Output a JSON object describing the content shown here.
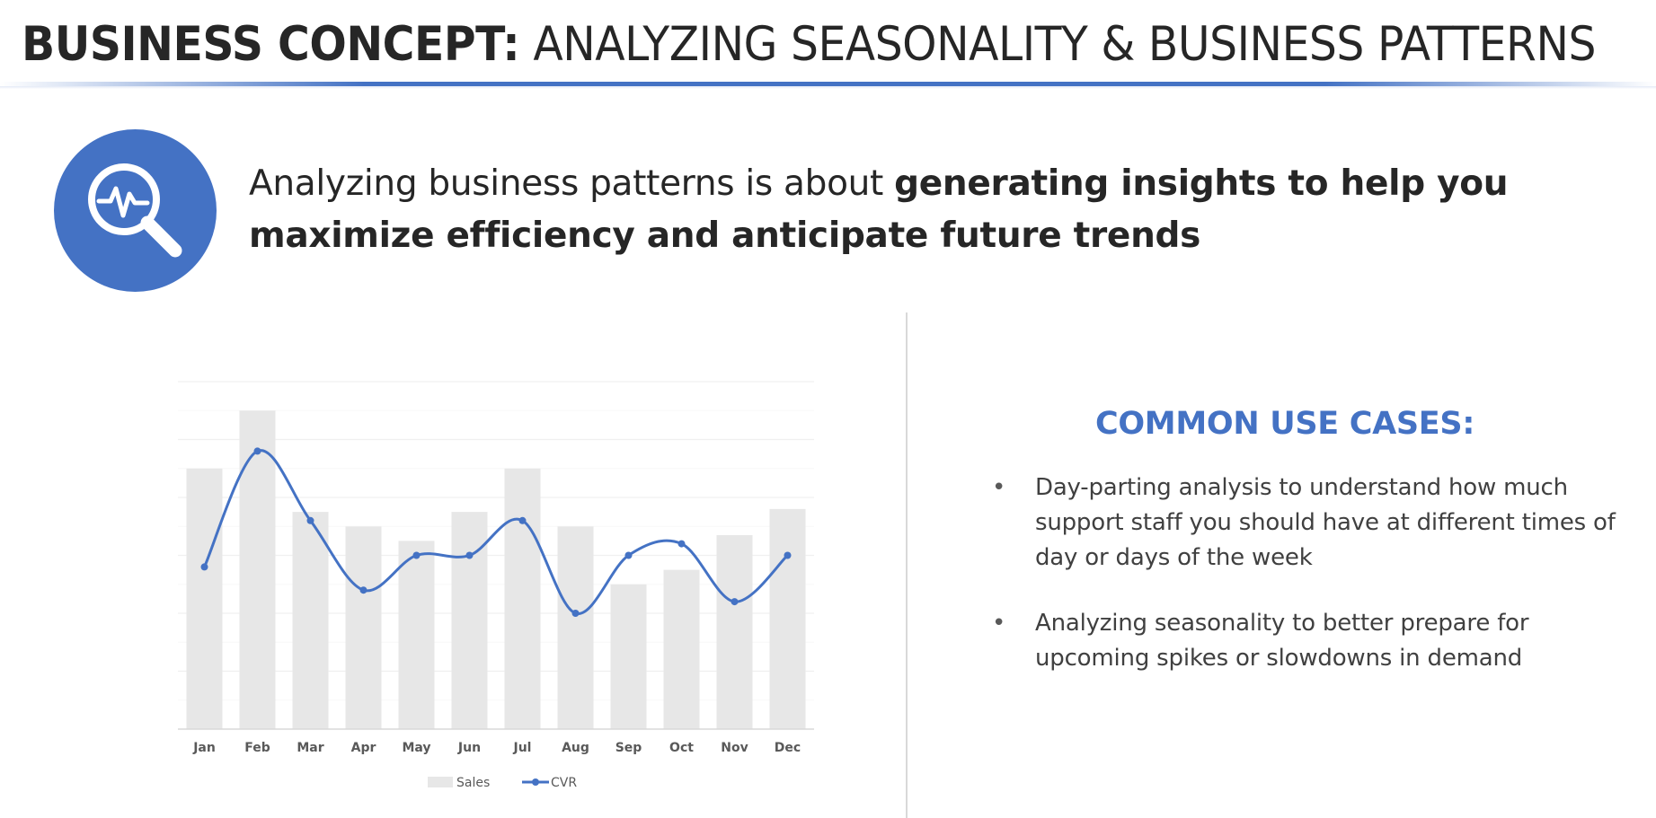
{
  "title": {
    "bold": "BUSINESS CONCEPT:",
    "rest": " ANALYZING SEASONALITY & BUSINESS PATTERNS"
  },
  "intro": {
    "plain": "Analyzing business patterns is about ",
    "strong": "generating insights to help you maximize efficiency and anticipate future trends"
  },
  "icon": "magnifier-pulse-icon",
  "colors": {
    "accent": "#4472C4",
    "bar": "#E7E7E7",
    "text": "#262626"
  },
  "use_cases": {
    "title": "COMMON USE CASES:",
    "items": [
      "Day-parting analysis to understand how much support staff you should have at different times of day or days of the week",
      "Analyzing seasonality to better prepare for upcoming spikes or slowdowns in demand"
    ],
    "bullet_char": "•"
  },
  "chart_data": {
    "type": "bar",
    "categories": [
      "Jan",
      "Feb",
      "Mar",
      "Apr",
      "May",
      "Jun",
      "Jul",
      "Aug",
      "Sep",
      "Oct",
      "Nov",
      "Dec"
    ],
    "series": [
      {
        "name": "Sales",
        "type": "bar",
        "values": [
          9.0,
          11.0,
          7.5,
          7.0,
          6.5,
          7.5,
          9.0,
          7.0,
          5.0,
          5.5,
          6.7,
          7.6
        ]
      },
      {
        "name": "CVR",
        "type": "line",
        "values": [
          5.6,
          9.6,
          7.2,
          4.8,
          6.0,
          6.0,
          7.2,
          4.0,
          6.0,
          6.4,
          4.4,
          6.0
        ]
      }
    ],
    "ylim": [
      0,
      12
    ],
    "grid": true,
    "legend": "bottom",
    "title": "",
    "xlabel": "",
    "ylabel": ""
  }
}
